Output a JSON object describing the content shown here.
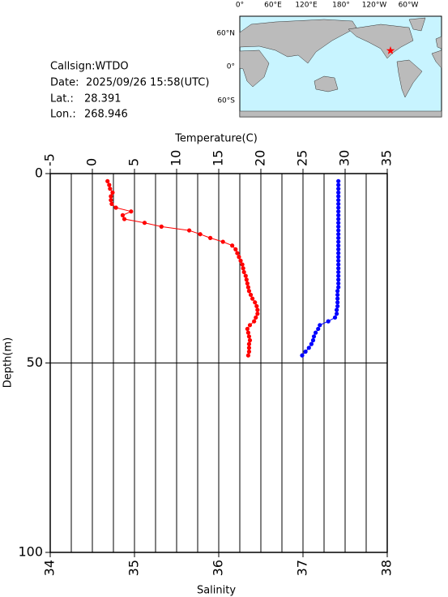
{
  "info": {
    "callsign": "Callsign:WTDO",
    "date_label": "Date:",
    "date": "2025/09/26 15:58(UTC)",
    "lat_label": "Lat.:",
    "lat": 28.391,
    "lon_label": "Lon.:",
    "lon": 268.946
  },
  "map": {
    "lon_labels": [
      "0°",
      "60°E",
      "120°E",
      "180°",
      "120°W",
      "60°W"
    ],
    "lat_labels": [
      "60°N",
      "0°",
      "60°S"
    ],
    "marker_color": "#ff0000"
  },
  "chart_data": {
    "type": "profile",
    "xlabel": "Temperature(C)",
    "xlim": [
      -5,
      35
    ],
    "xticks": [
      -5,
      0,
      5,
      10,
      15,
      20,
      25,
      30,
      35
    ],
    "x_minor_ticks": [
      -2.5,
      0,
      2.5,
      5,
      7.5,
      10,
      12.5,
      15,
      17.5,
      20,
      22.5,
      25,
      27.5,
      30,
      32.5
    ],
    "x2label": "Salinity",
    "x2lim": [
      34,
      38
    ],
    "x2ticks": [
      34,
      35,
      36,
      37,
      38
    ],
    "ylabel": "Depth(m)",
    "ylim": [
      0,
      100
    ],
    "yticks": [
      0,
      50,
      100
    ],
    "y_grid": [
      50
    ],
    "y_inverted": true,
    "series": [
      {
        "color": "#ff0000",
        "axis": "x",
        "depth": [
          2,
          3,
          4,
          5,
          6,
          7,
          8,
          9,
          10,
          11,
          12,
          13,
          14,
          15,
          16,
          17,
          18,
          19,
          20,
          21,
          22,
          23,
          24,
          25,
          26,
          27,
          28,
          29,
          30,
          31,
          32,
          33,
          34,
          35,
          36,
          37,
          38,
          39,
          40,
          41,
          42,
          43,
          44,
          45,
          46,
          47,
          48
        ],
        "values": [
          1.8,
          2.0,
          2.1,
          2.4,
          2.2,
          2.2,
          2.3,
          2.8,
          4.6,
          3.6,
          3.8,
          6.2,
          8.2,
          11.5,
          12.8,
          14.0,
          15.5,
          16.6,
          17.0,
          17.2,
          17.4,
          17.6,
          17.8,
          17.9,
          18.0,
          18.2,
          18.3,
          18.4,
          18.5,
          18.6,
          18.8,
          19.0,
          19.3,
          19.5,
          19.6,
          19.6,
          19.4,
          19.2,
          18.7,
          18.4,
          18.5,
          18.6,
          18.7,
          18.6,
          18.6,
          18.6,
          18.5
        ]
      },
      {
        "color": "#0000ff",
        "axis": "x2",
        "depth": [
          2,
          3,
          4,
          5,
          6,
          7,
          8,
          9,
          10,
          11,
          12,
          13,
          14,
          15,
          16,
          17,
          18,
          19,
          20,
          21,
          22,
          23,
          24,
          25,
          26,
          27,
          28,
          29,
          30,
          31,
          32,
          33,
          34,
          35,
          36,
          37,
          38,
          39,
          40,
          41,
          42,
          43,
          44,
          45,
          46,
          47,
          48
        ],
        "values": [
          37.42,
          37.42,
          37.42,
          37.42,
          37.42,
          37.42,
          37.42,
          37.42,
          37.42,
          37.42,
          37.42,
          37.42,
          37.42,
          37.42,
          37.42,
          37.42,
          37.42,
          37.42,
          37.42,
          37.42,
          37.42,
          37.42,
          37.42,
          37.42,
          37.42,
          37.42,
          37.42,
          37.42,
          37.42,
          37.41,
          37.41,
          37.41,
          37.41,
          37.41,
          37.4,
          37.4,
          37.38,
          37.3,
          37.2,
          37.18,
          37.15,
          37.13,
          37.12,
          37.1,
          37.07,
          37.03,
          36.99
        ]
      }
    ]
  }
}
